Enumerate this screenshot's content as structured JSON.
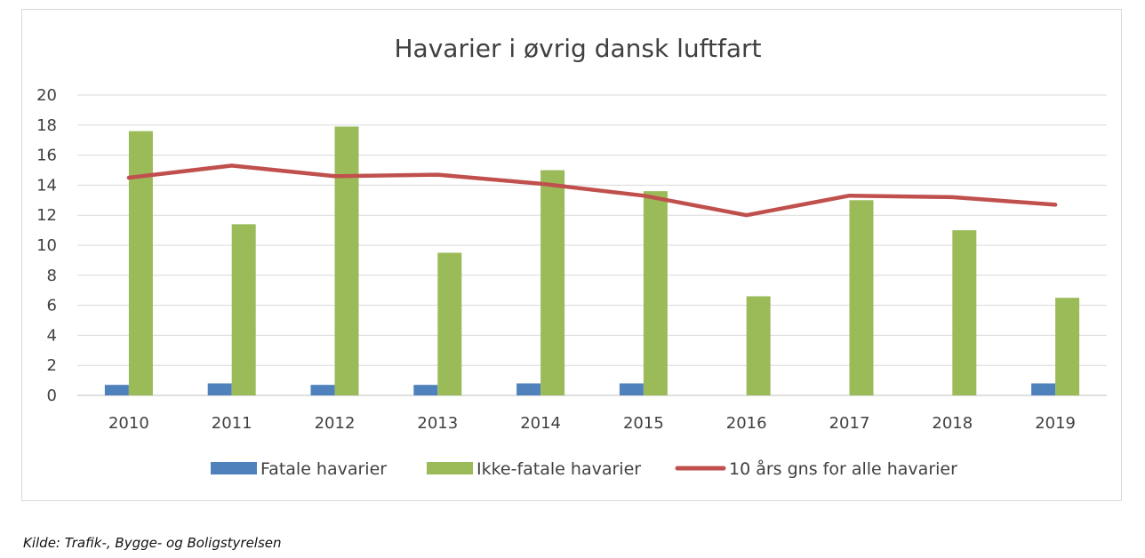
{
  "chart_data": {
    "type": "bar",
    "title": "Havarier i øvrig dansk luftfart",
    "categories": [
      "2010",
      "2011",
      "2012",
      "2013",
      "2014",
      "2015",
      "2016",
      "2017",
      "2018",
      "2019"
    ],
    "series": [
      {
        "name": "Fatale havarier",
        "kind": "bar",
        "color": "#4f81bd",
        "values": [
          0.7,
          0.8,
          0.7,
          0.7,
          0.8,
          0.8,
          0,
          0,
          0,
          0.8
        ]
      },
      {
        "name": "Ikke-fatale havarier",
        "kind": "bar",
        "color": "#9bbb59",
        "values": [
          17.6,
          11.4,
          17.9,
          9.5,
          15.0,
          13.6,
          6.6,
          13.0,
          11.0,
          6.5
        ]
      },
      {
        "name": "10 års gns for alle havarier",
        "kind": "line",
        "color": "#c0504d",
        "values": [
          14.5,
          15.3,
          14.6,
          14.7,
          14.1,
          13.3,
          12.0,
          13.3,
          13.2,
          12.7
        ]
      }
    ],
    "ylim": [
      0,
      20
    ],
    "yticks": [
      0,
      2,
      4,
      6,
      8,
      10,
      12,
      14,
      16,
      18,
      20
    ],
    "grid": true,
    "legend": "bottom"
  },
  "source": "Kilde: Trafik-, Bygge- og Boligstyrelsen"
}
